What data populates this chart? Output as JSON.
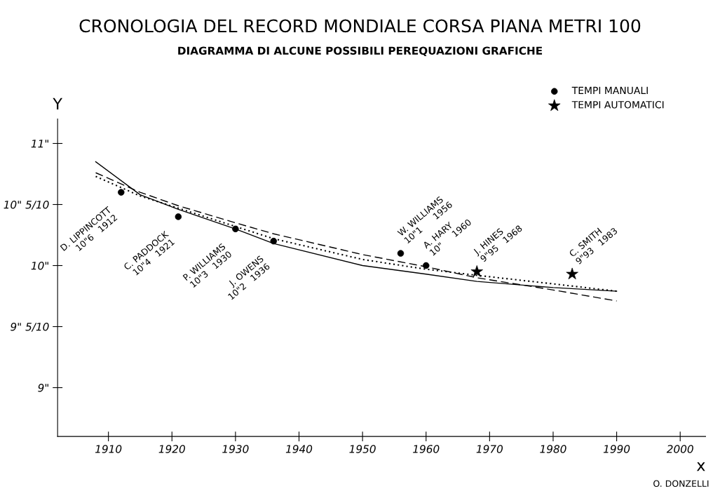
{
  "chart_data": {
    "type": "scatter",
    "title": "CRONOLOGIA DEL RECORD MONDIALE CORSA PIANA METRI 100",
    "subtitle": "DIAGRAMMA DI ALCUNE POSSIBILI PEREQUAZIONI GRAFICHE",
    "xlabel": "x",
    "ylabel": "Y",
    "series": [
      {
        "name": "TEMPI MANUALI",
        "marker": "circle",
        "color": "#000000",
        "x": [
          1912,
          1921,
          1930,
          1936,
          1956,
          1960
        ],
        "values": [
          10.6,
          10.4,
          10.3,
          10.2,
          10.1,
          10.0
        ]
      },
      {
        "name": "TEMPI AUTOMATICI",
        "marker": "star",
        "color": "#000000",
        "x": [
          1968,
          1983
        ],
        "values": [
          9.95,
          9.93
        ]
      },
      {
        "type": "line",
        "line_style": "solid",
        "color": "#000000",
        "x": [
          1908,
          1915,
          1921,
          1930,
          1936,
          1950,
          1960,
          1968,
          1980,
          1990
        ],
        "values": [
          10.85,
          10.58,
          10.46,
          10.3,
          10.18,
          10.0,
          9.93,
          9.87,
          9.82,
          9.79
        ]
      },
      {
        "type": "line",
        "line_style": "dashed",
        "color": "#000000",
        "x": [
          1908,
          1915,
          1921,
          1930,
          1936,
          1950,
          1960,
          1968,
          1980,
          1990
        ],
        "values": [
          10.76,
          10.6,
          10.49,
          10.35,
          10.26,
          10.09,
          9.99,
          9.9,
          9.8,
          9.71
        ]
      },
      {
        "type": "line",
        "line_style": "dotted",
        "color": "#000000",
        "x": [
          1908,
          1915,
          1921,
          1930,
          1936,
          1950,
          1960,
          1968,
          1980,
          1990
        ],
        "values": [
          10.73,
          10.57,
          10.47,
          10.32,
          10.22,
          10.05,
          9.97,
          9.92,
          9.85,
          9.79
        ]
      }
    ],
    "xlim": [
      1902,
      2004
    ],
    "xticks": [
      1910,
      1920,
      1930,
      1940,
      1950,
      1960,
      1970,
      1980,
      1990,
      2000
    ],
    "ylim": [
      8.6,
      11.2
    ],
    "yticks": [
      {
        "value": 9,
        "label": "9\""
      },
      {
        "value": 9.5,
        "label": "9\" 5/10"
      },
      {
        "value": 10,
        "label": "10\""
      },
      {
        "value": 10.5,
        "label": "10\" 5/10"
      },
      {
        "value": 11,
        "label": "11\""
      }
    ],
    "legend": "top right",
    "grid": false,
    "annotations": [
      {
        "text": "D. LIPPINCOTT\n10\"6   1912",
        "x": 1912,
        "y": 10.6
      },
      {
        "text": "C. PADDOCK\n10\"4   1921",
        "x": 1921,
        "y": 10.4
      },
      {
        "text": "P. WILLIAMS\n10\"3   1930",
        "x": 1930,
        "y": 10.3
      },
      {
        "text": "J. OWENS\n10\"2   1936",
        "x": 1936,
        "y": 10.2
      },
      {
        "text": "W. WILLIAMS\n10\"1      1956",
        "x": 1956,
        "y": 10.1
      },
      {
        "text": "A. HARY\n10\"     1960",
        "x": 1960,
        "y": 10.0
      },
      {
        "text": "J. HINES\n9\"95   1968",
        "x": 1968,
        "y": 9.95
      },
      {
        "text": "C. SMITH\n9\"93   1983",
        "x": 1983,
        "y": 9.93
      },
      "O. DONZELLI"
    ]
  }
}
